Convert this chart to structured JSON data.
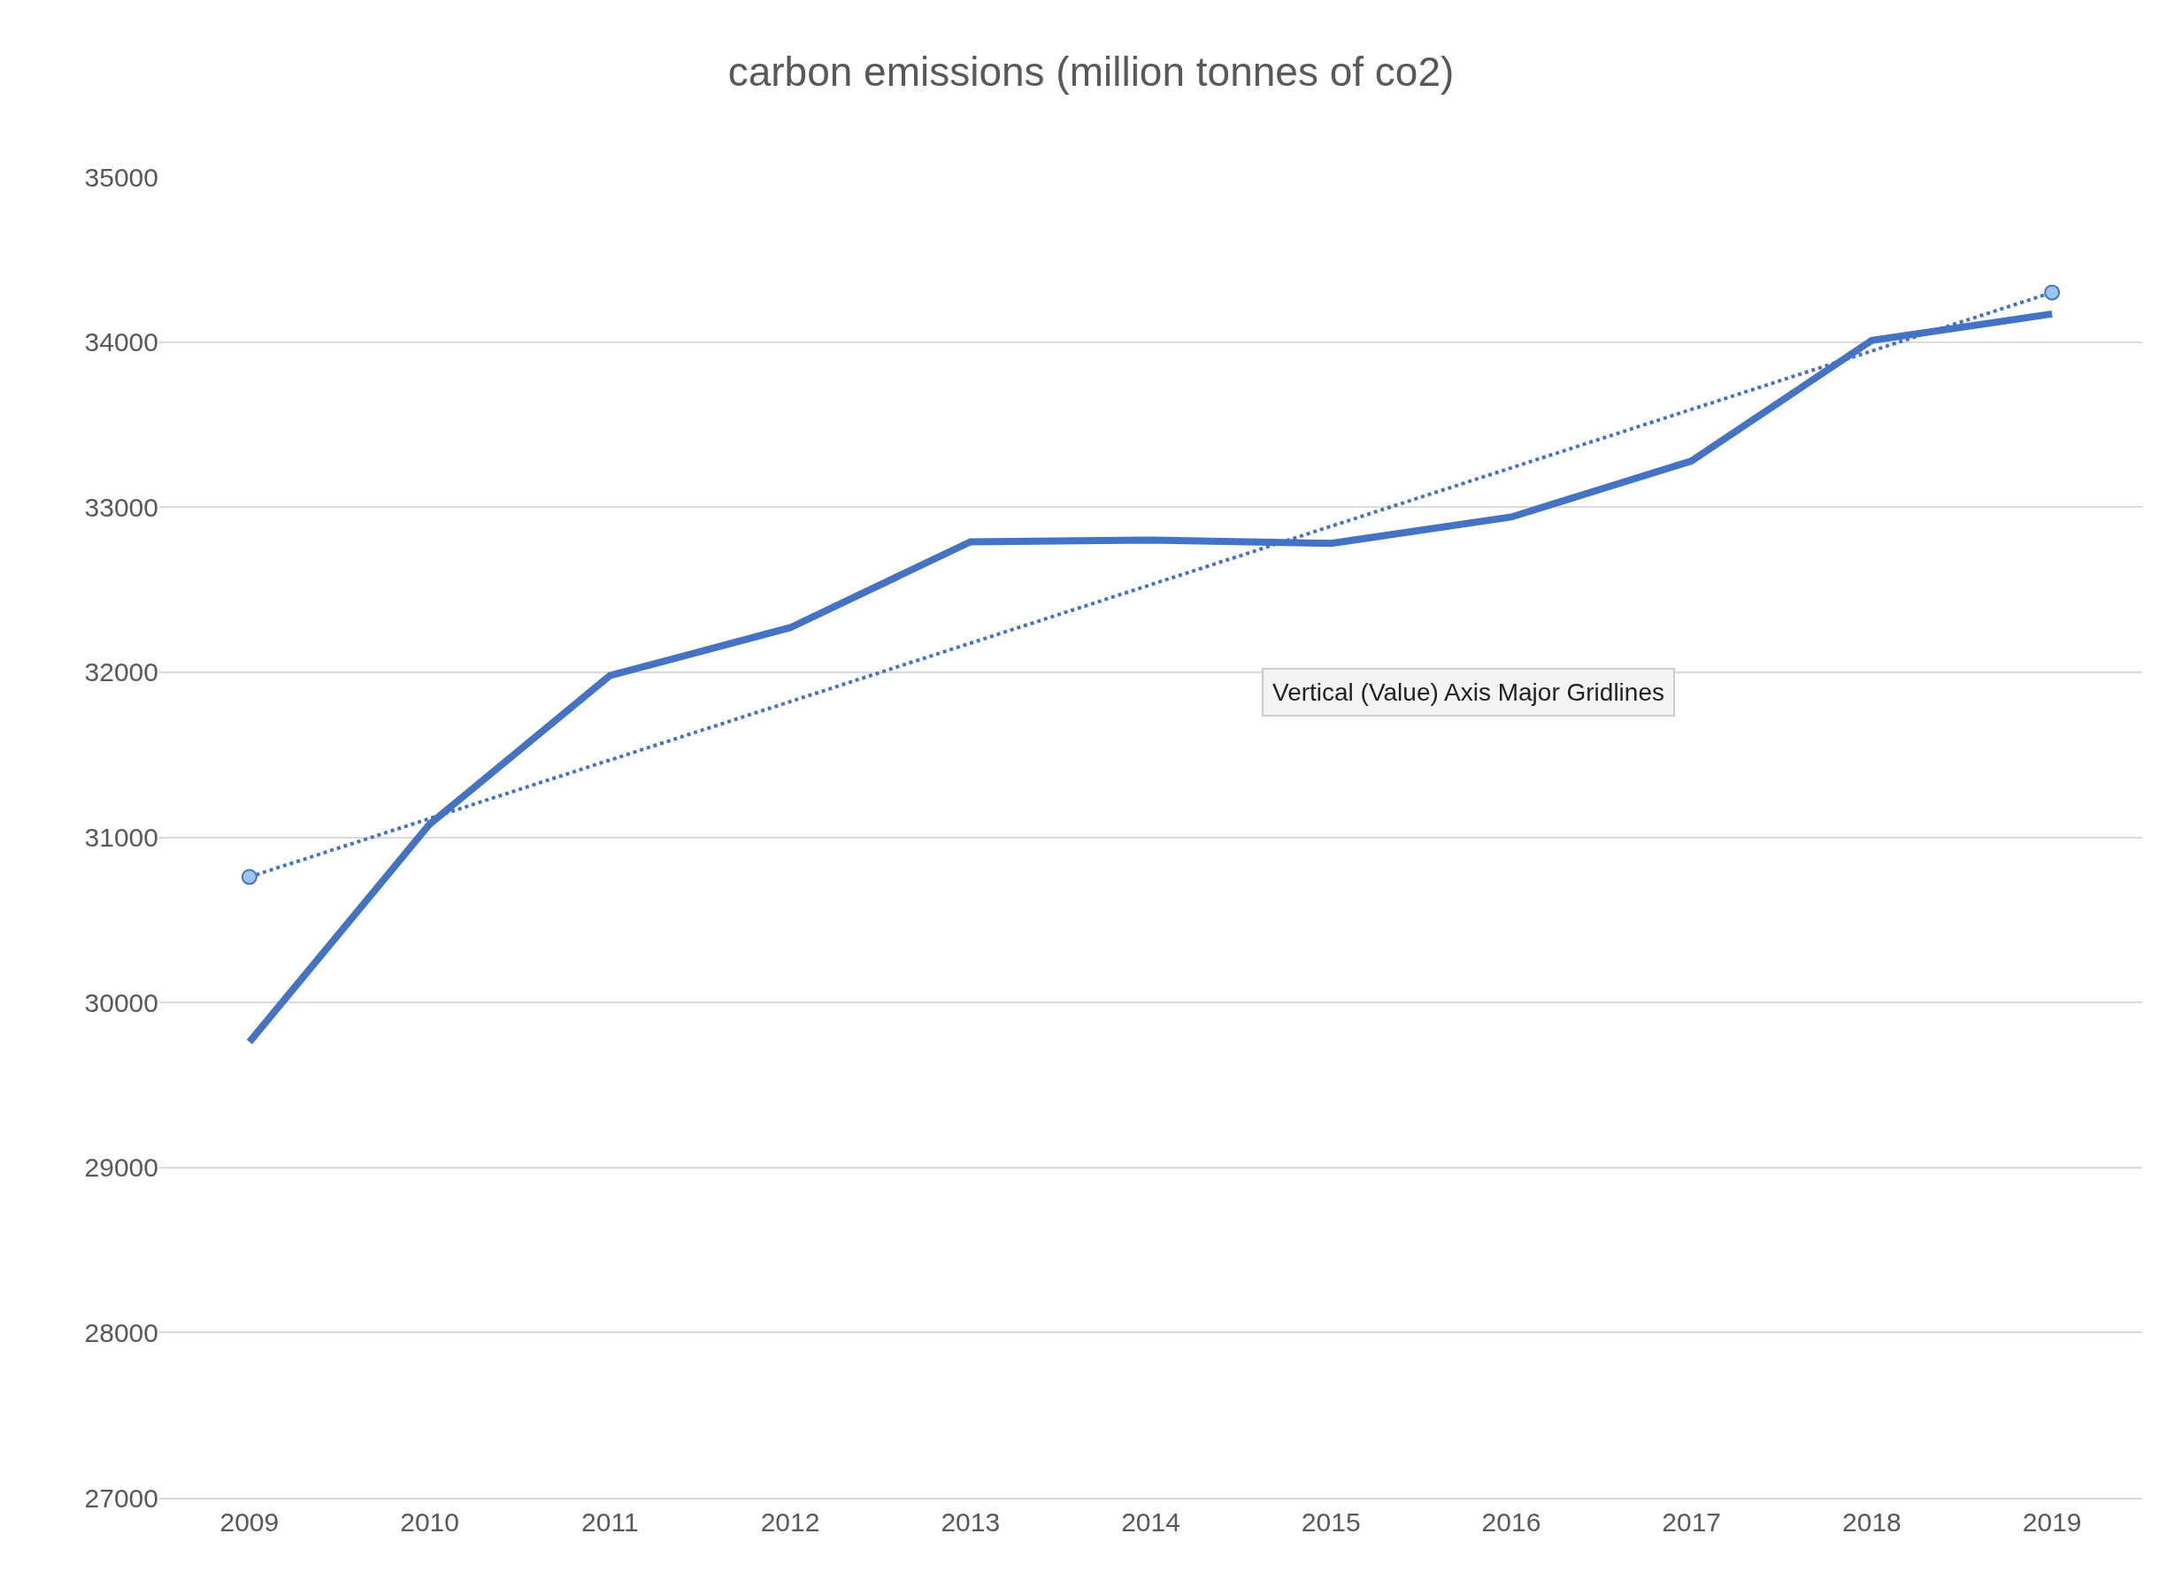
{
  "chart_data": {
    "type": "line",
    "title": "carbon emissions (million tonnes of co2)",
    "x": [
      2009,
      2010,
      2011,
      2012,
      2013,
      2014,
      2015,
      2016,
      2017,
      2018,
      2019
    ],
    "series": [
      {
        "color": "#4472c4",
        "values": [
          29760,
          31080,
          31980,
          32270,
          32790,
          32800,
          32780,
          32940,
          33280,
          34010,
          34170
        ],
        "marker": "none",
        "line_style": "solid"
      },
      {
        "type": "line",
        "color": "#4472c4",
        "x": [
          2009,
          2019
        ],
        "values": [
          30760,
          34300
        ],
        "marker": "circle",
        "line_style": "dotted"
      }
    ],
    "xlim": [
      2008.5,
      2019.5
    ],
    "xticks": [
      2009,
      2010,
      2011,
      2012,
      2013,
      2014,
      2015,
      2016,
      2017,
      2018,
      2019
    ],
    "ylim": [
      27000,
      35000
    ],
    "yticks": [
      27000,
      28000,
      29000,
      30000,
      31000,
      32000,
      33000,
      34000,
      35000
    ],
    "grid": "y",
    "annotations": [
      "Vertical (Value) Axis Major Gridlines"
    ]
  }
}
